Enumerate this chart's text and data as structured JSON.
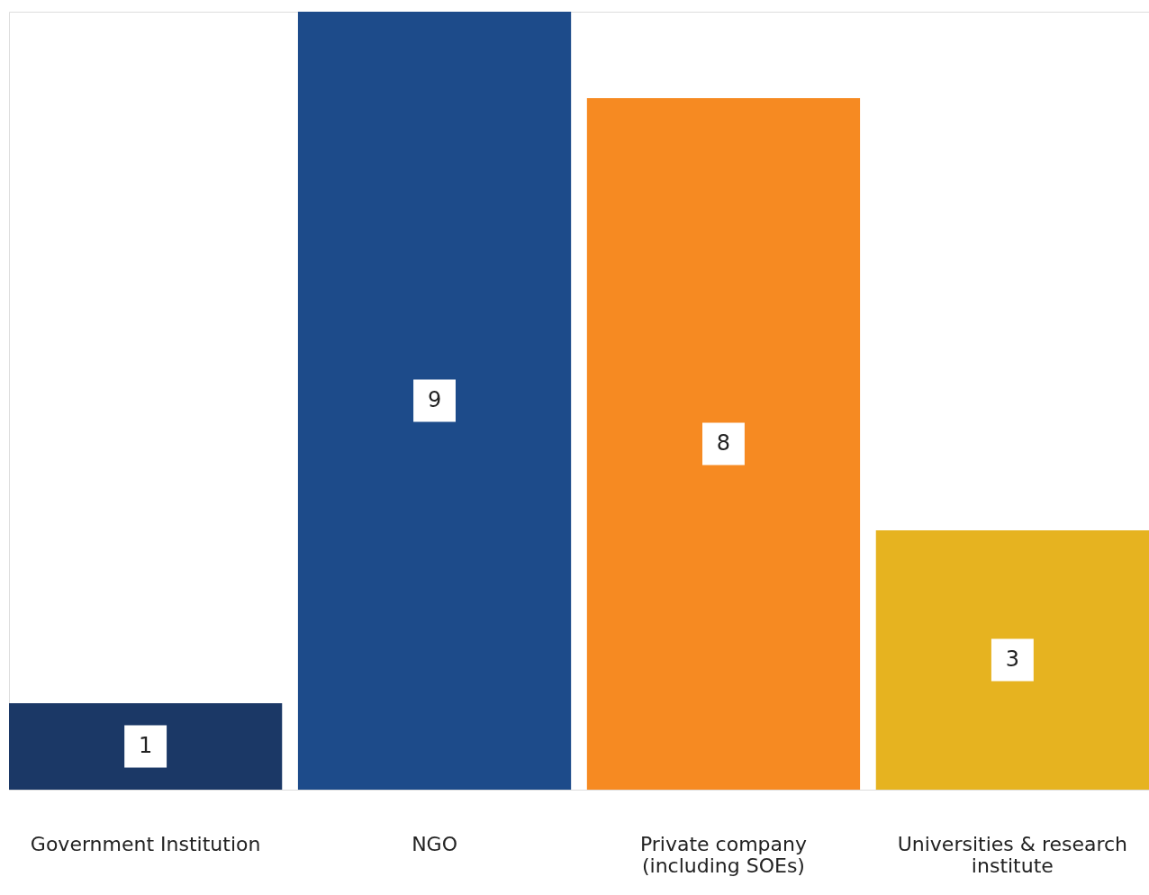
{
  "chart_data": {
    "type": "bar",
    "categories": [
      "Government Institution",
      "NGO",
      "Private company (including SOEs)",
      "Universities & research institute"
    ],
    "values": [
      1,
      9,
      8,
      3
    ],
    "colors": [
      "#1b3866",
      "#1d4b8a",
      "#f68a22",
      "#e6b320"
    ],
    "data_labels": true,
    "grid": false
  }
}
